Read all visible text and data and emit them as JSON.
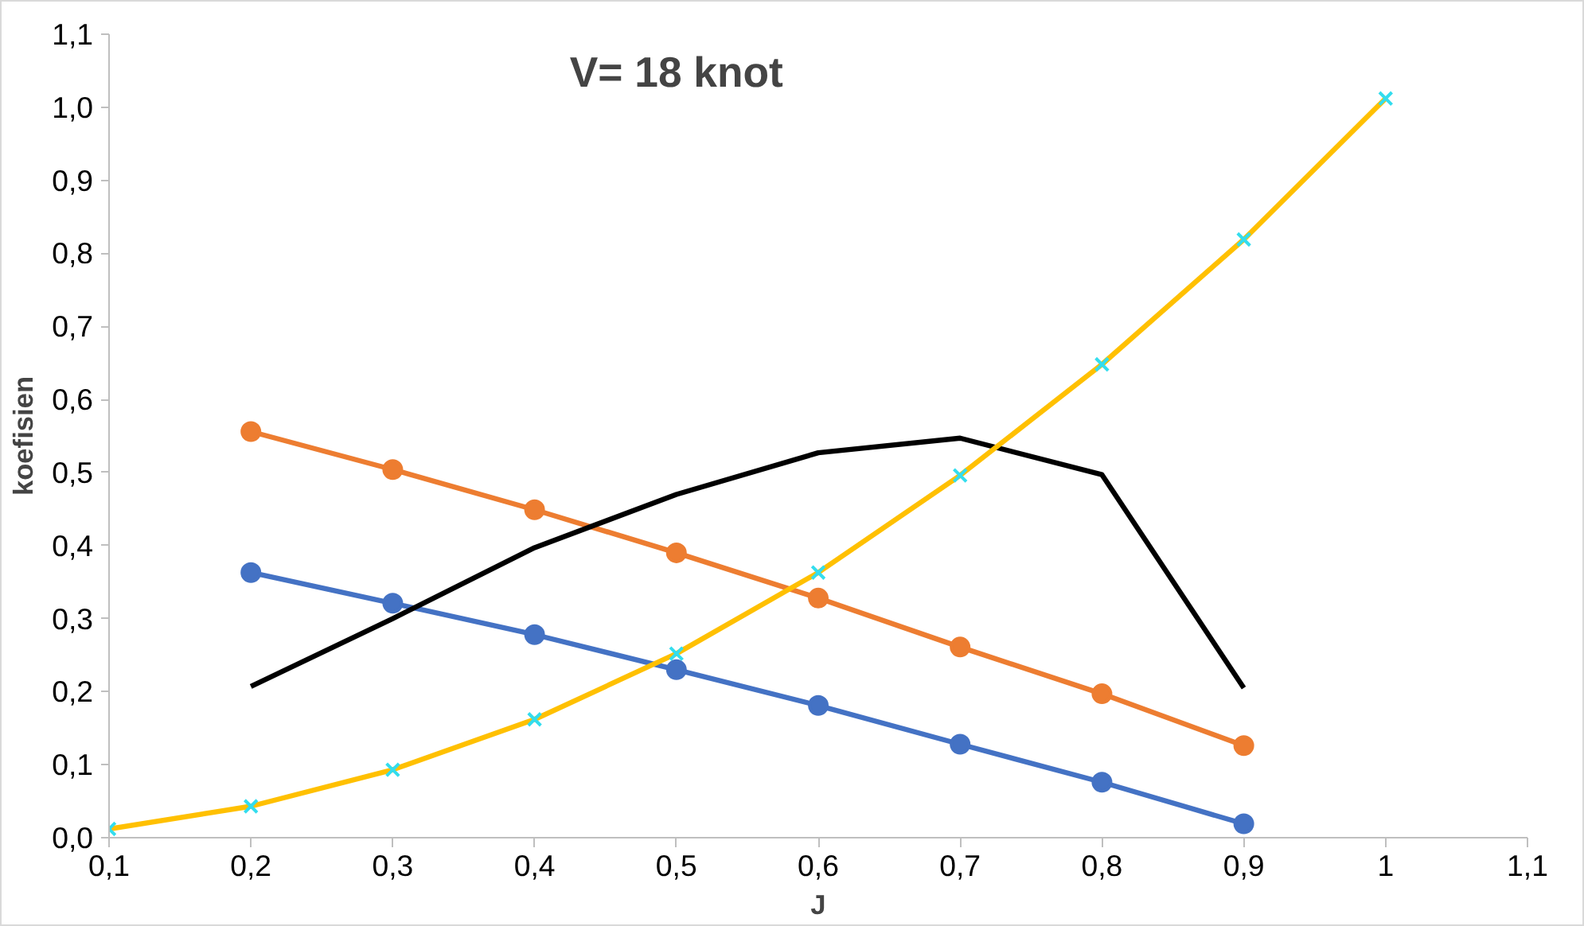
{
  "chart_data": {
    "type": "line",
    "title": "V= 18 knot",
    "xlabel": "J",
    "ylabel": "koefisien",
    "x": [
      0.1,
      0.2,
      0.3,
      0.4,
      0.5,
      0.6,
      0.7,
      0.8,
      0.9,
      1.0
    ],
    "series": [
      {
        "color": "#4472c4",
        "marker": "circle",
        "x": [
          0.2,
          0.3,
          0.4,
          0.5,
          0.6,
          0.7,
          0.8,
          0.9
        ],
        "values": [
          0.363,
          0.321,
          0.278,
          0.23,
          0.181,
          0.128,
          0.076,
          0.019
        ]
      },
      {
        "color": "#ed7d31",
        "marker": "circle",
        "x": [
          0.2,
          0.3,
          0.4,
          0.5,
          0.6,
          0.7,
          0.8,
          0.9
        ],
        "values": [
          0.556,
          0.504,
          0.449,
          0.39,
          0.328,
          0.261,
          0.197,
          0.126
        ]
      },
      {
        "color": "#000000",
        "marker": "none",
        "x": [
          0.2,
          0.3,
          0.4,
          0.5,
          0.6,
          0.7,
          0.8,
          0.9
        ],
        "values": [
          0.207,
          0.3,
          0.397,
          0.47,
          0.527,
          0.547,
          0.497,
          0.205
        ]
      },
      {
        "color": "#ffc000",
        "marker": "cross",
        "colors": [
          "#33ddee",
          "#33ddee",
          "#33ddee",
          "#33ddee",
          "#33ddee",
          "#33ddee",
          "#33ddee",
          "#33ddee",
          "#33ddee",
          "#33ddee"
        ],
        "values": [
          0.012,
          0.043,
          0.093,
          0.162,
          0.252,
          0.363,
          0.496,
          0.648,
          0.819,
          1.012
        ]
      }
    ],
    "xlim": [
      0.1,
      1.1
    ],
    "ylim": [
      0.0,
      1.1
    ],
    "xticks": [
      {
        "value": 0.1,
        "label": "0,1"
      },
      {
        "value": 0.2,
        "label": "0,2"
      },
      {
        "value": 0.3,
        "label": "0,3"
      },
      {
        "value": 0.4,
        "label": "0,4"
      },
      {
        "value": 0.5,
        "label": "0,5"
      },
      {
        "value": 0.6,
        "label": "0,6"
      },
      {
        "value": 0.7,
        "label": "0,7"
      },
      {
        "value": 0.8,
        "label": "0,8"
      },
      {
        "value": 0.9,
        "label": "0,9"
      },
      1,
      {
        "value": 1.1,
        "label": "1,1"
      }
    ],
    "yticks": [
      {
        "value": 0.0,
        "label": "0,0"
      },
      {
        "value": 0.1,
        "label": "0,1"
      },
      {
        "value": 0.2,
        "label": "0,2"
      },
      {
        "value": 0.3,
        "label": "0,3"
      },
      {
        "value": 0.4,
        "label": "0,4"
      },
      {
        "value": 0.5,
        "label": "0,5"
      },
      {
        "value": 0.6,
        "label": "0,6"
      },
      {
        "value": 0.7,
        "label": "0,7"
      },
      {
        "value": 0.8,
        "label": "0,8"
      },
      {
        "value": 0.9,
        "label": "0,9"
      },
      {
        "value": 1.0,
        "label": "1,0"
      },
      {
        "value": 1.1,
        "label": "1,1"
      }
    ],
    "grid": false
  }
}
